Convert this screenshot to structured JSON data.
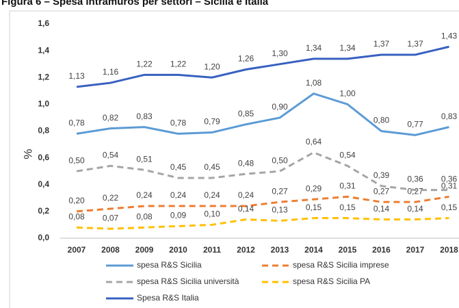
{
  "chart_data": {
    "type": "line",
    "title": "Figura 6 – Spesa intramuros per settori – Sicilia e Italia",
    "y_label": "%",
    "categories": [
      "2007",
      "2008",
      "2009",
      "2010",
      "2011",
      "2012",
      "2013",
      "2014",
      "2015",
      "2016",
      "2017",
      "2018"
    ],
    "ylim": [
      0,
      1.6
    ],
    "yticks": [
      {
        "value": 0,
        "label": "0,0"
      },
      {
        "value": 0.2,
        "label": "0,2"
      },
      {
        "value": 0.4,
        "label": "0,4"
      },
      {
        "value": 0.6,
        "label": "0,6"
      },
      {
        "value": 0.8,
        "label": "0,8"
      },
      {
        "value": 1,
        "label": "1,0"
      },
      {
        "value": 1.2,
        "label": "1,2"
      },
      {
        "value": 1.4,
        "label": "1,4"
      },
      {
        "value": 1.6,
        "label": "1,6"
      }
    ],
    "grid": false,
    "series": [
      {
        "name": "spesa R&S Sicilia",
        "color": "#5b9bd5",
        "dashed": false,
        "values": [
          0.78,
          0.82,
          0.83,
          0.78,
          0.79,
          0.85,
          0.9,
          1.08,
          1.0,
          0.8,
          0.77,
          0.83
        ],
        "value_labels": [
          "0,78",
          "0,82",
          "0,83",
          "0,78",
          "0,79",
          "0,85",
          "0,90",
          "1,08",
          "1,00",
          "0,80",
          "0,77",
          "0,83"
        ]
      },
      {
        "name": "spesa  R&S Sicilia imprese",
        "color": "#ed7d31",
        "dashed": true,
        "values": [
          0.2,
          0.22,
          0.24,
          0.24,
          0.24,
          0.24,
          0.27,
          0.29,
          0.31,
          0.27,
          0.27,
          0.31
        ],
        "value_labels": [
          "0,20",
          "0,22",
          "0,24",
          "0,24",
          "0,24",
          "0,24",
          "0,27",
          "0,29",
          "0,31",
          "0,27",
          "0,27",
          "0,31"
        ]
      },
      {
        "name": "spesa  R&S Sicilia università",
        "color": "#a5a5a5",
        "dashed": true,
        "values": [
          0.5,
          0.54,
          0.51,
          0.45,
          0.45,
          0.48,
          0.5,
          0.64,
          0.54,
          0.39,
          0.36,
          0.36
        ],
        "value_labels": [
          "0,50",
          "0,54",
          "0,51",
          "0,45",
          "0,45",
          "0,48",
          "0,50",
          "0,64",
          "0,54",
          "0,39",
          "0,36",
          "0,36"
        ]
      },
      {
        "name": "spesa  R&S Sicilia PA",
        "color": "#ffc000",
        "dashed": true,
        "values": [
          0.08,
          0.07,
          0.08,
          0.09,
          0.1,
          0.14,
          0.13,
          0.15,
          0.15,
          0.14,
          0.14,
          0.15
        ],
        "value_labels": [
          "0,08",
          "0,07",
          "0,08",
          "0,09",
          "0,10",
          "0,14",
          "0,13",
          "0,15",
          "0,15",
          "0,14",
          "0,14",
          "0,15"
        ]
      },
      {
        "name": "Spesa R&S Italia",
        "color": "#3760c0",
        "dashed": false,
        "values": [
          1.13,
          1.16,
          1.22,
          1.22,
          1.2,
          1.26,
          1.3,
          1.34,
          1.34,
          1.37,
          1.37,
          1.43
        ],
        "value_labels": [
          "1,13",
          "1,16",
          "1,22",
          "1,22",
          "1,20",
          "1,26",
          "1,30",
          "1,34",
          "1,34",
          "1,37",
          "1,37",
          "1,43"
        ]
      }
    ]
  }
}
